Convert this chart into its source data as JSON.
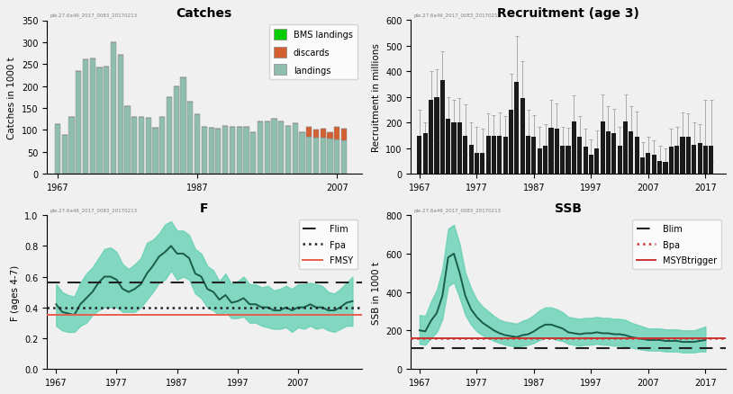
{
  "catches": {
    "years": [
      1967,
      1968,
      1969,
      1970,
      1971,
      1972,
      1973,
      1974,
      1975,
      1976,
      1977,
      1978,
      1979,
      1980,
      1981,
      1982,
      1983,
      1984,
      1985,
      1986,
      1987,
      1988,
      1989,
      1990,
      1991,
      1992,
      1993,
      1994,
      1995,
      1996,
      1997,
      1998,
      1999,
      2000,
      2001,
      2002,
      2003,
      2004,
      2005,
      2006,
      2007,
      2008
    ],
    "landings": [
      113,
      88,
      130,
      235,
      260,
      262,
      242,
      245,
      300,
      272,
      155,
      130,
      130,
      127,
      105,
      130,
      175,
      200,
      220,
      165,
      135,
      107,
      105,
      103,
      110,
      107,
      107,
      107,
      95,
      120,
      120,
      125,
      120,
      110,
      115,
      95,
      85,
      83,
      82,
      80,
      78,
      77
    ],
    "discards": [
      0,
      0,
      0,
      0,
      0,
      0,
      0,
      0,
      0,
      0,
      0,
      0,
      0,
      0,
      0,
      0,
      0,
      0,
      0,
      0,
      0,
      0,
      0,
      0,
      0,
      0,
      0,
      0,
      0,
      0,
      0,
      0,
      0,
      0,
      0,
      0,
      22,
      18,
      20,
      15,
      30,
      25
    ],
    "bms": [
      0,
      0,
      0,
      0,
      0,
      0,
      0,
      0,
      0,
      0,
      0,
      0,
      0,
      0,
      0,
      0,
      0,
      0,
      0,
      0,
      0,
      0,
      0,
      0,
      0,
      0,
      0,
      0,
      0,
      0,
      0,
      0,
      0,
      0,
      0,
      0,
      0,
      0,
      0,
      0,
      0,
      0
    ],
    "ylim": [
      0,
      350
    ],
    "ylabel": "Catches in 1000 t",
    "title": "Catches",
    "landing_color": "#8fbeaf",
    "discard_color": "#d45f30",
    "bms_color": "#00cc00"
  },
  "recruitment": {
    "years": [
      1967,
      1968,
      1969,
      1970,
      1971,
      1972,
      1973,
      1974,
      1975,
      1976,
      1977,
      1978,
      1979,
      1980,
      1981,
      1982,
      1983,
      1984,
      1985,
      1986,
      1987,
      1988,
      1989,
      1990,
      1991,
      1992,
      1993,
      1994,
      1995,
      1996,
      1997,
      1998,
      1999,
      2000,
      2001,
      2002,
      2003,
      2004,
      2005,
      2006,
      2007,
      2008,
      2009,
      2010,
      2011,
      2012,
      2013,
      2014,
      2015,
      2016,
      2017,
      2018
    ],
    "values": [
      150,
      160,
      290,
      300,
      365,
      215,
      200,
      200,
      150,
      115,
      80,
      80,
      150,
      150,
      150,
      145,
      250,
      360,
      295,
      150,
      145,
      100,
      110,
      180,
      175,
      110,
      110,
      205,
      145,
      105,
      75,
      100,
      205,
      165,
      160,
      110,
      205,
      165,
      145,
      65,
      80,
      75,
      50,
      45,
      105,
      110,
      145,
      145,
      115,
      120,
      110,
      110
    ],
    "err_low": [
      50,
      60,
      130,
      130,
      180,
      100,
      90,
      95,
      75,
      50,
      30,
      35,
      60,
      50,
      55,
      55,
      130,
      200,
      155,
      80,
      70,
      50,
      55,
      90,
      90,
      55,
      50,
      110,
      75,
      55,
      35,
      45,
      120,
      85,
      80,
      55,
      115,
      80,
      65,
      30,
      35,
      30,
      20,
      20,
      45,
      45,
      65,
      65,
      50,
      55,
      50,
      50
    ],
    "err_high": [
      250,
      200,
      400,
      410,
      480,
      300,
      290,
      295,
      270,
      200,
      185,
      175,
      235,
      230,
      240,
      225,
      390,
      540,
      440,
      250,
      230,
      185,
      195,
      290,
      275,
      185,
      180,
      305,
      225,
      175,
      135,
      170,
      310,
      265,
      255,
      185,
      310,
      265,
      245,
      125,
      145,
      130,
      110,
      100,
      175,
      185,
      240,
      235,
      200,
      195,
      290,
      290
    ],
    "ylim": [
      0,
      600
    ],
    "ylabel": "Recruitment in millions",
    "title": "Recruitment (age 3)",
    "bar_color": "#1a1a1a"
  },
  "F": {
    "years": [
      1967,
      1968,
      1969,
      1970,
      1971,
      1972,
      1973,
      1974,
      1975,
      1976,
      1977,
      1978,
      1979,
      1980,
      1981,
      1982,
      1983,
      1984,
      1985,
      1986,
      1987,
      1988,
      1989,
      1990,
      1991,
      1992,
      1993,
      1994,
      1995,
      1996,
      1997,
      1998,
      1999,
      2000,
      2001,
      2002,
      2003,
      2004,
      2005,
      2006,
      2007,
      2008,
      2009,
      2010,
      2011,
      2012,
      2013,
      2014,
      2015,
      2016
    ],
    "values": [
      0.42,
      0.37,
      0.36,
      0.35,
      0.42,
      0.46,
      0.5,
      0.56,
      0.6,
      0.6,
      0.58,
      0.52,
      0.5,
      0.52,
      0.55,
      0.62,
      0.67,
      0.73,
      0.76,
      0.8,
      0.75,
      0.75,
      0.72,
      0.62,
      0.6,
      0.52,
      0.5,
      0.45,
      0.48,
      0.43,
      0.44,
      0.46,
      0.42,
      0.42,
      0.4,
      0.4,
      0.38,
      0.38,
      0.4,
      0.38,
      0.4,
      0.4,
      0.42,
      0.4,
      0.4,
      0.38,
      0.38,
      0.4,
      0.43,
      0.44
    ],
    "ci_low": [
      0.28,
      0.25,
      0.24,
      0.24,
      0.28,
      0.3,
      0.35,
      0.38,
      0.4,
      0.4,
      0.4,
      0.37,
      0.37,
      0.37,
      0.4,
      0.45,
      0.5,
      0.56,
      0.58,
      0.64,
      0.58,
      0.6,
      0.58,
      0.49,
      0.46,
      0.4,
      0.38,
      0.35,
      0.37,
      0.33,
      0.33,
      0.34,
      0.3,
      0.3,
      0.28,
      0.27,
      0.26,
      0.26,
      0.27,
      0.24,
      0.27,
      0.26,
      0.28,
      0.26,
      0.27,
      0.25,
      0.24,
      0.26,
      0.28,
      0.28
    ],
    "ci_high": [
      0.55,
      0.5,
      0.48,
      0.47,
      0.56,
      0.62,
      0.66,
      0.72,
      0.78,
      0.79,
      0.76,
      0.68,
      0.65,
      0.68,
      0.72,
      0.82,
      0.84,
      0.88,
      0.94,
      0.96,
      0.9,
      0.9,
      0.87,
      0.78,
      0.75,
      0.67,
      0.64,
      0.57,
      0.62,
      0.55,
      0.57,
      0.6,
      0.55,
      0.55,
      0.53,
      0.54,
      0.51,
      0.52,
      0.54,
      0.52,
      0.55,
      0.55,
      0.56,
      0.55,
      0.54,
      0.5,
      0.49,
      0.52,
      0.56,
      0.6
    ],
    "Flim": 0.56,
    "Fpa": 0.4,
    "FMSY": 0.35,
    "ylim": [
      0,
      1.0
    ],
    "ylabel": "F (ages 4-7)",
    "title": "F",
    "line_color": "#1a5c4a",
    "band_color": "#5ecfb0",
    "Flim_color": "#222222",
    "Fpa_color": "#222222",
    "FMSY_color": "#e8604a"
  },
  "SSB": {
    "years": [
      1967,
      1968,
      1969,
      1970,
      1971,
      1972,
      1973,
      1974,
      1975,
      1976,
      1977,
      1978,
      1979,
      1980,
      1981,
      1982,
      1983,
      1984,
      1985,
      1986,
      1987,
      1988,
      1989,
      1990,
      1991,
      1992,
      1993,
      1994,
      1995,
      1996,
      1997,
      1998,
      1999,
      2000,
      2001,
      2002,
      2003,
      2004,
      2005,
      2006,
      2007,
      2008,
      2009,
      2010,
      2011,
      2012,
      2013,
      2014,
      2015,
      2016,
      2017
    ],
    "values": [
      200,
      195,
      250,
      290,
      380,
      580,
      600,
      500,
      380,
      310,
      270,
      240,
      220,
      200,
      185,
      175,
      170,
      165,
      175,
      180,
      195,
      215,
      230,
      230,
      220,
      210,
      190,
      185,
      180,
      185,
      185,
      190,
      185,
      185,
      180,
      180,
      175,
      165,
      160,
      155,
      150,
      150,
      150,
      145,
      145,
      145,
      140,
      140,
      140,
      145,
      150
    ],
    "ci_low": [
      130,
      125,
      160,
      190,
      260,
      430,
      450,
      370,
      280,
      230,
      195,
      175,
      160,
      145,
      135,
      125,
      120,
      115,
      120,
      125,
      135,
      150,
      160,
      160,
      150,
      145,
      130,
      125,
      120,
      125,
      125,
      130,
      125,
      125,
      120,
      120,
      115,
      110,
      105,
      100,
      95,
      95,
      95,
      90,
      90,
      90,
      85,
      85,
      85,
      90,
      90
    ],
    "ci_high": [
      280,
      275,
      350,
      410,
      520,
      730,
      750,
      650,
      500,
      420,
      360,
      325,
      300,
      275,
      255,
      245,
      240,
      235,
      250,
      260,
      280,
      305,
      320,
      320,
      310,
      295,
      270,
      265,
      260,
      265,
      265,
      270,
      265,
      265,
      260,
      260,
      255,
      240,
      230,
      220,
      210,
      210,
      210,
      205,
      205,
      205,
      200,
      200,
      200,
      210,
      220
    ],
    "Blim": 107,
    "Bpa": 161,
    "MSYBtrigger": 161,
    "ylim": [
      0,
      800
    ],
    "ylabel": "SSB in 1000 t",
    "title": "SSB",
    "line_color": "#1a5c4a",
    "band_color": "#5ecfb0",
    "Blim_color": "#222222",
    "Bpa_color": "#cc3333",
    "MSYBtrigger_color": "#cc3333"
  },
  "background_color": "#f0f0f0",
  "watermark": "ple.27.6a46_2017_0083_20170213"
}
